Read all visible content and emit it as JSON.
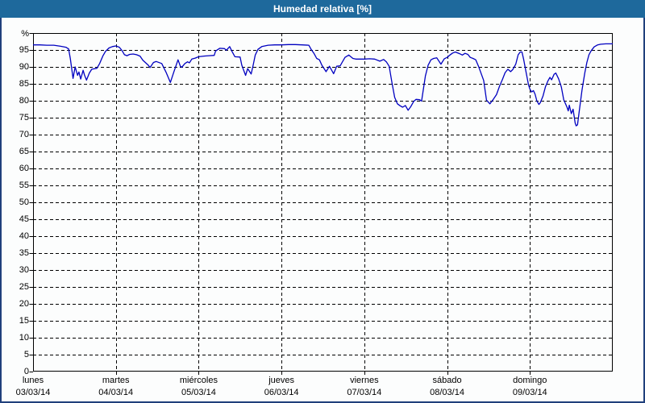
{
  "window": {
    "title": "Humedad relativa [%]"
  },
  "colors": {
    "titlebar_bg": "#1e699c",
    "title_text": "#ffffff",
    "outer_border": "#20407c",
    "chart_bg": "#fcfdfd",
    "line": "#0000c0",
    "grid": "#000000",
    "text": "#000000"
  },
  "chart_data": {
    "type": "line",
    "title": "Humedad relativa [%]",
    "ylabel": "%",
    "xlabel": "",
    "ylim": [
      0,
      100
    ],
    "ytick_step": 5,
    "yticks": [
      0,
      5,
      10,
      15,
      20,
      25,
      30,
      35,
      40,
      45,
      50,
      55,
      60,
      65,
      70,
      75,
      80,
      85,
      90,
      95
    ],
    "grid": "dashed",
    "legend": "none",
    "x_unit": "hours",
    "x_range_hours": [
      0,
      168
    ],
    "days": [
      {
        "name": "lunes",
        "date": "03/03/14"
      },
      {
        "name": "martes",
        "date": "04/03/14"
      },
      {
        "name": "miércoles",
        "date": "05/03/14"
      },
      {
        "name": "jueves",
        "date": "06/03/14"
      },
      {
        "name": "viernes",
        "date": "07/03/14"
      },
      {
        "name": "sábado",
        "date": "08/03/14"
      },
      {
        "name": "domingo",
        "date": "09/03/14"
      }
    ],
    "series": [
      {
        "name": "Humedad relativa",
        "color": "#0000c0",
        "points": [
          [
            0,
            96.5
          ],
          [
            2,
            96.5
          ],
          [
            4,
            96.4
          ],
          [
            6,
            96.4
          ],
          [
            8,
            96.1
          ],
          [
            9.5,
            95.8
          ],
          [
            10.3,
            95.3
          ],
          [
            10.8,
            92.5
          ],
          [
            11.6,
            86.6
          ],
          [
            12.2,
            90
          ],
          [
            12.9,
            87.5
          ],
          [
            13.3,
            88.5
          ],
          [
            13.8,
            86.4
          ],
          [
            14.5,
            89
          ],
          [
            14.9,
            87.6
          ],
          [
            15.5,
            86.1
          ],
          [
            16.3,
            88.2
          ],
          [
            17,
            89.3
          ],
          [
            18.5,
            89.6
          ],
          [
            19.3,
            91
          ],
          [
            20.2,
            93.2
          ],
          [
            21,
            94.6
          ],
          [
            22,
            95.6
          ],
          [
            23,
            96
          ],
          [
            24,
            96.2
          ],
          [
            25,
            95.8
          ],
          [
            25.8,
            94.8
          ],
          [
            26.5,
            93.6
          ],
          [
            27.2,
            93.3
          ],
          [
            28,
            93.7
          ],
          [
            29,
            93.8
          ],
          [
            30,
            93.6
          ],
          [
            31,
            93.2
          ],
          [
            31.8,
            92
          ],
          [
            33.4,
            90.5
          ],
          [
            33.9,
            89.8
          ],
          [
            34.9,
            91.3
          ],
          [
            35.7,
            91.6
          ],
          [
            37.3,
            91
          ],
          [
            38.5,
            88.5
          ],
          [
            39.8,
            85.4
          ],
          [
            40.8,
            88.5
          ],
          [
            42,
            92.1
          ],
          [
            42.7,
            90.2
          ],
          [
            43.1,
            89.9
          ],
          [
            44,
            91
          ],
          [
            44.8,
            91.5
          ],
          [
            45.3,
            91.2
          ],
          [
            46,
            92.3
          ],
          [
            47,
            92.6
          ],
          [
            48,
            93
          ],
          [
            49.5,
            93.2
          ],
          [
            51,
            93.3
          ],
          [
            52.5,
            93.4
          ],
          [
            52.9,
            94.7
          ],
          [
            54.1,
            95.5
          ],
          [
            55.5,
            95.4
          ],
          [
            56,
            94.9
          ],
          [
            57,
            96
          ],
          [
            57.7,
            94.5
          ],
          [
            58.5,
            93
          ],
          [
            60,
            92.9
          ],
          [
            60.5,
            90.5
          ],
          [
            61.6,
            87.5
          ],
          [
            62.2,
            89.5
          ],
          [
            63.2,
            87.9
          ],
          [
            63.8,
            90.5
          ],
          [
            64.4,
            93.5
          ],
          [
            65.2,
            95.2
          ],
          [
            66.3,
            96
          ],
          [
            68.1,
            96.4
          ],
          [
            70,
            96.5
          ],
          [
            72,
            96.5
          ],
          [
            74,
            96.6
          ],
          [
            76,
            96.6
          ],
          [
            78,
            96.5
          ],
          [
            79.9,
            96.4
          ],
          [
            80.6,
            95.2
          ],
          [
            81.4,
            94
          ],
          [
            82.2,
            92.5
          ],
          [
            83,
            92.1
          ],
          [
            83.7,
            90.5
          ],
          [
            84.9,
            88.6
          ],
          [
            85.9,
            90.2
          ],
          [
            87.1,
            88
          ],
          [
            88,
            90.2
          ],
          [
            89,
            90.3
          ],
          [
            90.4,
            92.8
          ],
          [
            91.5,
            93.5
          ],
          [
            92.7,
            92.5
          ],
          [
            93.5,
            92.3
          ],
          [
            95,
            92.3
          ],
          [
            96,
            92.3
          ],
          [
            97.5,
            92.4
          ],
          [
            99,
            92.3
          ],
          [
            100.5,
            91.7
          ],
          [
            101.6,
            92.2
          ],
          [
            102.4,
            91.5
          ],
          [
            103.2,
            90.2
          ],
          [
            104,
            85.4
          ],
          [
            104.8,
            81
          ],
          [
            105.6,
            79.1
          ],
          [
            106.4,
            78.5
          ],
          [
            107.1,
            78.1
          ],
          [
            107.9,
            78.6
          ],
          [
            108.7,
            77.2
          ],
          [
            109.5,
            78.3
          ],
          [
            110.3,
            79.8
          ],
          [
            111,
            80.4
          ],
          [
            112,
            80.3
          ],
          [
            112.6,
            79.9
          ],
          [
            113,
            82.6
          ],
          [
            113.7,
            87.3
          ],
          [
            114.5,
            90.5
          ],
          [
            115.3,
            92.1
          ],
          [
            116.1,
            92.5
          ],
          [
            117,
            92.7
          ],
          [
            118.2,
            90.8
          ],
          [
            119.2,
            92.4
          ],
          [
            120,
            92.8
          ],
          [
            120.8,
            93.5
          ],
          [
            121.6,
            94.1
          ],
          [
            122.4,
            94.4
          ],
          [
            123.6,
            93.9
          ],
          [
            124.4,
            93.5
          ],
          [
            125.2,
            94
          ],
          [
            126,
            93.7
          ],
          [
            126.7,
            92.8
          ],
          [
            127.5,
            92.5
          ],
          [
            128.3,
            92.1
          ],
          [
            129.1,
            90.2
          ],
          [
            130.6,
            86
          ],
          [
            131.4,
            80.2
          ],
          [
            132.4,
            79.1
          ],
          [
            133.3,
            80.3
          ],
          [
            134.3,
            81.8
          ],
          [
            135.2,
            84.3
          ],
          [
            136,
            86.2
          ],
          [
            136.8,
            88.3
          ],
          [
            137.6,
            89.3
          ],
          [
            138.4,
            88.6
          ],
          [
            139,
            89.2
          ],
          [
            139.9,
            90.8
          ],
          [
            140.6,
            93.6
          ],
          [
            141.2,
            94.4
          ],
          [
            141.7,
            94.4
          ],
          [
            142.2,
            92.1
          ],
          [
            142.9,
            88.3
          ],
          [
            143.6,
            84.6
          ],
          [
            144,
            83.4
          ],
          [
            144.5,
            82.6
          ],
          [
            145,
            83
          ],
          [
            145.5,
            81.9
          ],
          [
            146,
            80
          ],
          [
            146.6,
            78.9
          ],
          [
            147,
            79.4
          ],
          [
            147.8,
            81.4
          ],
          [
            148.5,
            84.1
          ],
          [
            149.2,
            85.8
          ],
          [
            149.8,
            86.9
          ],
          [
            150.3,
            86.2
          ],
          [
            151,
            87.8
          ],
          [
            151.5,
            88.2
          ],
          [
            152.3,
            86.5
          ],
          [
            153.1,
            84.1
          ],
          [
            153.8,
            80.3
          ],
          [
            154.7,
            78.2
          ],
          [
            155.1,
            77
          ],
          [
            155.4,
            78.7
          ],
          [
            156,
            76.2
          ],
          [
            156.5,
            77.5
          ],
          [
            157.1,
            73.4
          ],
          [
            157.4,
            72.6
          ],
          [
            157.8,
            72.9
          ],
          [
            158.3,
            77
          ],
          [
            159.1,
            83.2
          ],
          [
            159.9,
            88.2
          ],
          [
            160.5,
            91.3
          ],
          [
            161.1,
            93.6
          ],
          [
            161.7,
            94.7
          ],
          [
            162.6,
            95.9
          ],
          [
            163.6,
            96.5
          ],
          [
            164.5,
            96.7
          ],
          [
            166,
            96.8
          ],
          [
            168,
            96.8
          ]
        ]
      }
    ]
  }
}
